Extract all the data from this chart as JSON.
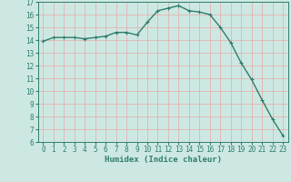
{
  "x": [
    0,
    1,
    2,
    3,
    4,
    5,
    6,
    7,
    8,
    9,
    10,
    11,
    12,
    13,
    14,
    15,
    16,
    17,
    18,
    19,
    20,
    21,
    22,
    23
  ],
  "y": [
    13.9,
    14.2,
    14.2,
    14.2,
    14.1,
    14.2,
    14.3,
    14.6,
    14.6,
    14.4,
    15.4,
    16.3,
    16.5,
    16.7,
    16.3,
    16.2,
    16.0,
    15.0,
    13.8,
    12.2,
    10.9,
    9.3,
    7.8,
    6.5
  ],
  "line_color": "#2e7d6e",
  "marker": "+",
  "marker_size": 3,
  "bg_color": "#cde8e2",
  "grid_color": "#e8a8a8",
  "xlabel": "Humidex (Indice chaleur)",
  "ylim": [
    6,
    17
  ],
  "yticks": [
    6,
    7,
    8,
    9,
    10,
    11,
    12,
    13,
    14,
    15,
    16,
    17
  ],
  "xticks": [
    0,
    1,
    2,
    3,
    4,
    5,
    6,
    7,
    8,
    9,
    10,
    11,
    12,
    13,
    14,
    15,
    16,
    17,
    18,
    19,
    20,
    21,
    22,
    23
  ],
  "tick_fontsize": 5.5,
  "xlabel_fontsize": 6.5,
  "line_width": 1.0
}
